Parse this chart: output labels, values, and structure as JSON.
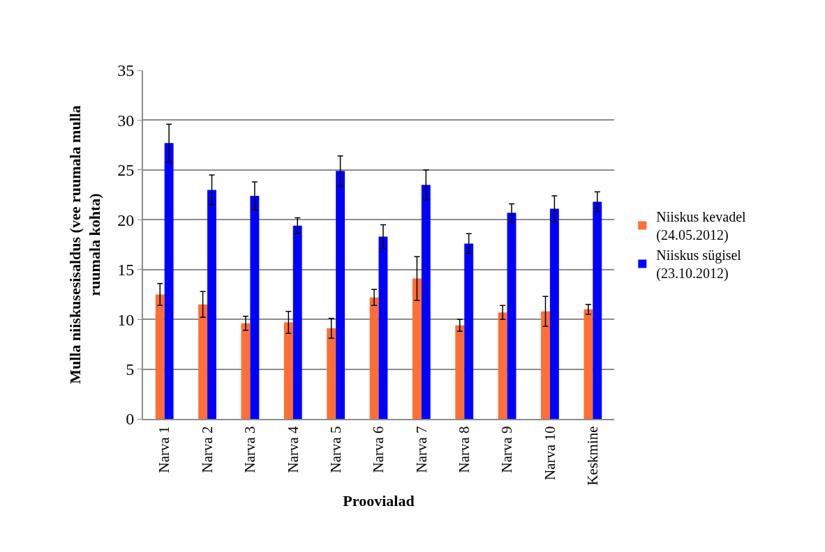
{
  "chart_data": {
    "type": "bar",
    "xlabel": "Proovialad",
    "ylabel": "Mulla niiskusesisaldus (vee ruumala mulla ruumala kohta)",
    "categories": [
      "Narva 1",
      "Narva 2",
      "Narva 3",
      "Narva 4",
      "Narva 5",
      "Narva 6",
      "Narva 7",
      "Narva 8",
      "Narva 9",
      "Narva 10",
      "Keskmine"
    ],
    "series": [
      {
        "name": "Niiskus kevadel (24.05.2012)",
        "color": "#ff6f33",
        "values": [
          12.5,
          11.5,
          9.6,
          9.7,
          9.1,
          12.2,
          14.1,
          9.4,
          10.7,
          10.8,
          11.0
        ],
        "errors": [
          1.1,
          1.3,
          0.7,
          1.1,
          1.0,
          0.8,
          2.2,
          0.6,
          0.7,
          1.5,
          0.5
        ]
      },
      {
        "name": "Niiskus sügisel (23.10.2012)",
        "color": "#0000ff",
        "values": [
          27.7,
          23.0,
          22.4,
          19.4,
          24.9,
          18.3,
          23.5,
          17.6,
          20.7,
          21.1,
          21.8
        ],
        "errors": [
          1.9,
          1.5,
          1.4,
          0.8,
          1.5,
          1.2,
          1.5,
          1.0,
          0.9,
          1.3,
          1.0
        ]
      }
    ],
    "ylim": [
      0,
      35
    ],
    "yticks": [
      0,
      5,
      10,
      15,
      20,
      25,
      30,
      35
    ],
    "grid": "y",
    "legend": "right"
  }
}
